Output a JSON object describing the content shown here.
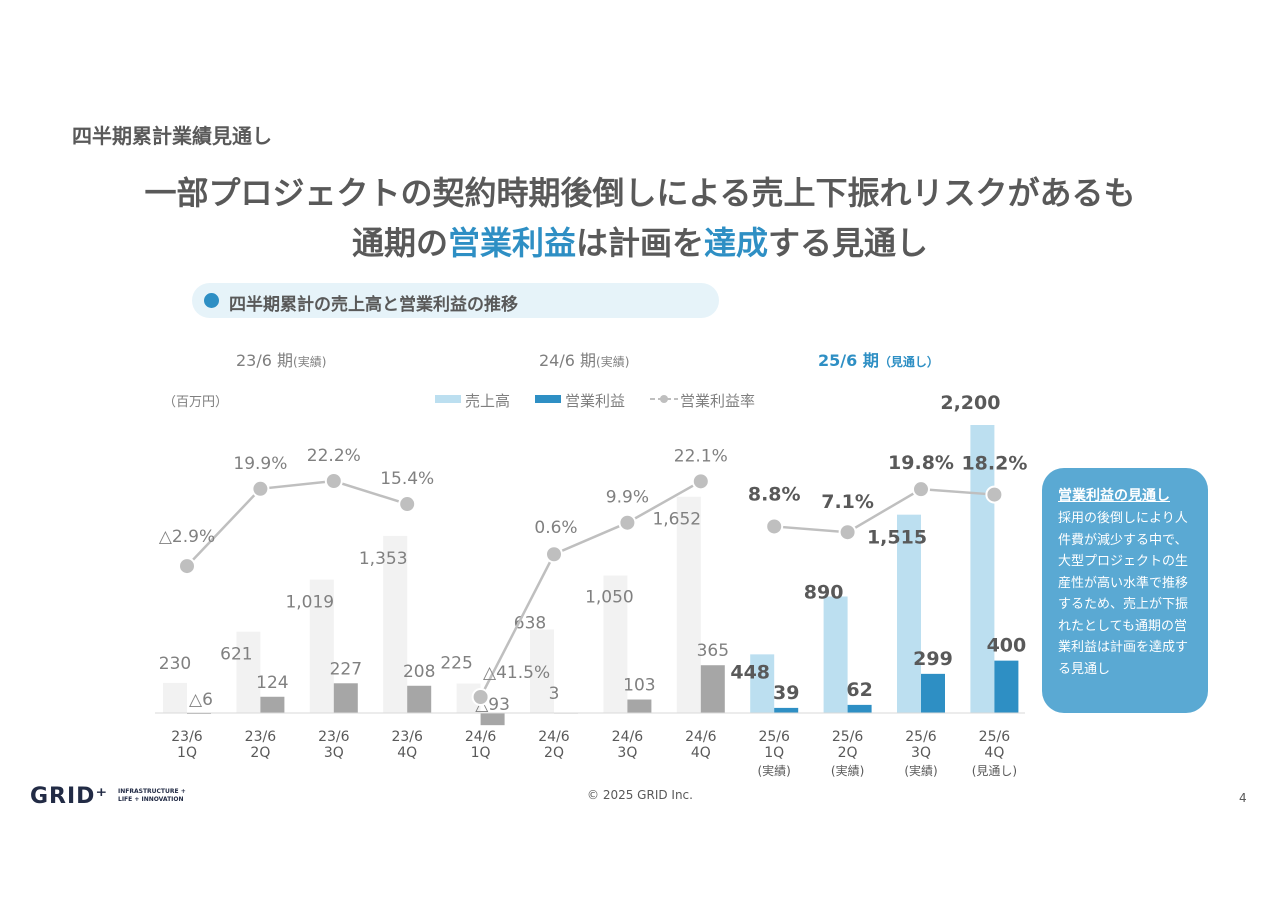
{
  "page": {
    "section_title": "四半期累計業績見通し",
    "headline_line1": "一部プロジェクトの契約時期後倒しによる売上下振れリスクがあるも",
    "headline_line2": {
      "p1": "通期の",
      "h1": "営業利益",
      "p2": "は計画を",
      "h2": "達成",
      "p3": "する見通し"
    },
    "pill_text": "四半期累計の売上高と営業利益の推移",
    "periods": [
      {
        "main": "23/6 期",
        "sub": "(実績)"
      },
      {
        "main": "24/6 期",
        "sub": "(実績)"
      },
      {
        "main": "25/6 期",
        "sub": "（見通し）"
      }
    ],
    "unit": "（百万円）",
    "callout": {
      "title": "営業利益の見通し",
      "body": "採用の後倒しにより人件費が減少する中で、大型プロジェクトの生産性が高い水準で推移するため、売上が下振れたとしても通期の営業利益は計画を達成する見通し"
    },
    "copyright": "© 2025 GRID Inc.",
    "page_number": "4",
    "logo": {
      "main": "GRID⁺",
      "sub1": "INFRASTRUCTURE +",
      "sub2": "LIFE + INNOVATION"
    }
  },
  "colors": {
    "accent": "#2e8fc4",
    "sales_past": "#f2f2f2",
    "sales_25": "#bcdff0",
    "op_past": "#a6a6a6",
    "op_25": "#2e8fc4",
    "line": "#bfbfbf"
  },
  "chart_data": {
    "type": "bar",
    "categories": [
      {
        "l1": "23/6",
        "l2": "1Q",
        "l3": ""
      },
      {
        "l1": "23/6",
        "l2": "2Q",
        "l3": ""
      },
      {
        "l1": "23/6",
        "l2": "3Q",
        "l3": ""
      },
      {
        "l1": "23/6",
        "l2": "4Q",
        "l3": ""
      },
      {
        "l1": "24/6",
        "l2": "1Q",
        "l3": ""
      },
      {
        "l1": "24/6",
        "l2": "2Q",
        "l3": ""
      },
      {
        "l1": "24/6",
        "l2": "3Q",
        "l3": ""
      },
      {
        "l1": "24/6",
        "l2": "4Q",
        "l3": ""
      },
      {
        "l1": "25/6",
        "l2": "1Q",
        "l3": "(実績)"
      },
      {
        "l1": "25/6",
        "l2": "2Q",
        "l3": "(実績)"
      },
      {
        "l1": "25/6",
        "l2": "3Q",
        "l3": "(実績)"
      },
      {
        "l1": "25/6",
        "l2": "4Q",
        "l3": "(見通し)"
      }
    ],
    "series": [
      {
        "name": "売上高",
        "values": [
          230,
          621,
          1019,
          1353,
          225,
          638,
          1050,
          1652,
          448,
          890,
          1515,
          2200
        ],
        "labels": [
          "230",
          "621",
          "1,019",
          "1,353",
          "225",
          "638",
          "1,050",
          "1,652",
          "448",
          "890",
          "1,515",
          "2,200"
        ]
      },
      {
        "name": "営業利益",
        "values": [
          -6,
          124,
          227,
          208,
          -93,
          3,
          103,
          365,
          39,
          62,
          299,
          400
        ],
        "labels": [
          "△6",
          "124",
          "227",
          "208",
          "△93",
          "3",
          "103",
          "365",
          "39",
          "62",
          "299",
          "400"
        ]
      },
      {
        "name": "営業利益率",
        "values": [
          -2.9,
          19.9,
          22.2,
          15.4,
          -41.5,
          0.6,
          9.9,
          22.1,
          8.8,
          7.1,
          19.8,
          18.2
        ],
        "labels": [
          "△2.9%",
          "19.9%",
          "22.2%",
          "15.4%",
          "△41.5%",
          "0.6%",
          "9.9%",
          "22.1%",
          "8.8%",
          "7.1%",
          "19.8%",
          "18.2%"
        ]
      }
    ]
  }
}
